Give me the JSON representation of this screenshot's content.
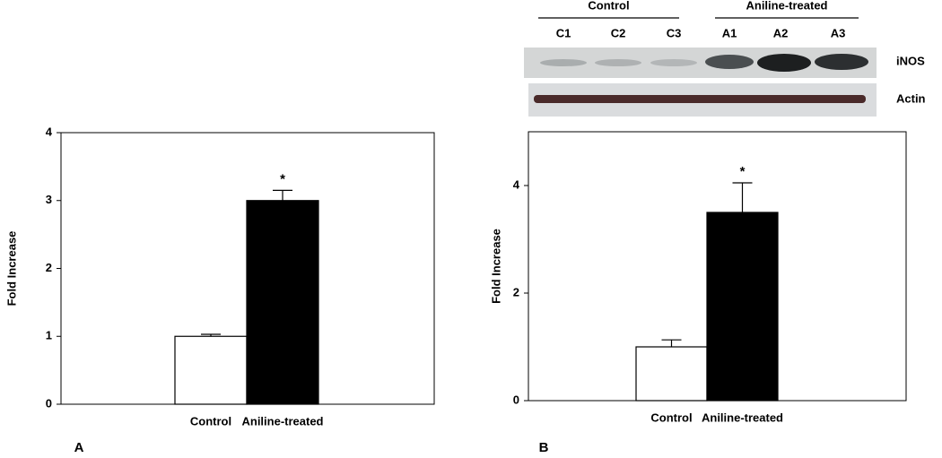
{
  "chart_data": [
    {
      "type": "bar",
      "panel": "A",
      "y_label": "Fold Increase",
      "categories": [
        "Control",
        "Aniline-treated"
      ],
      "values": [
        1.0,
        3.0
      ],
      "errors": [
        0.03,
        0.15
      ],
      "colors": [
        "#ffffff",
        "#000000"
      ],
      "annotation": "*",
      "ylim": [
        0,
        4
      ],
      "yticks": [
        0,
        1,
        2,
        3,
        4
      ]
    },
    {
      "type": "bar",
      "panel": "B",
      "y_label": "Fold Increase",
      "categories": [
        "Control",
        "Aniline-treated"
      ],
      "values": [
        1.0,
        3.5
      ],
      "errors": [
        0.13,
        0.55
      ],
      "colors": [
        "#ffffff",
        "#000000"
      ],
      "annotation": "*",
      "ylim": [
        0,
        5
      ],
      "yticks": [
        0,
        2,
        4
      ]
    }
  ],
  "blot": {
    "groups": [
      "Control",
      "Aniline-treated"
    ],
    "lanes": [
      "C1",
      "C2",
      "C3",
      "A1",
      "A2",
      "A3"
    ],
    "rows": [
      "iNOS",
      "Actin"
    ]
  }
}
